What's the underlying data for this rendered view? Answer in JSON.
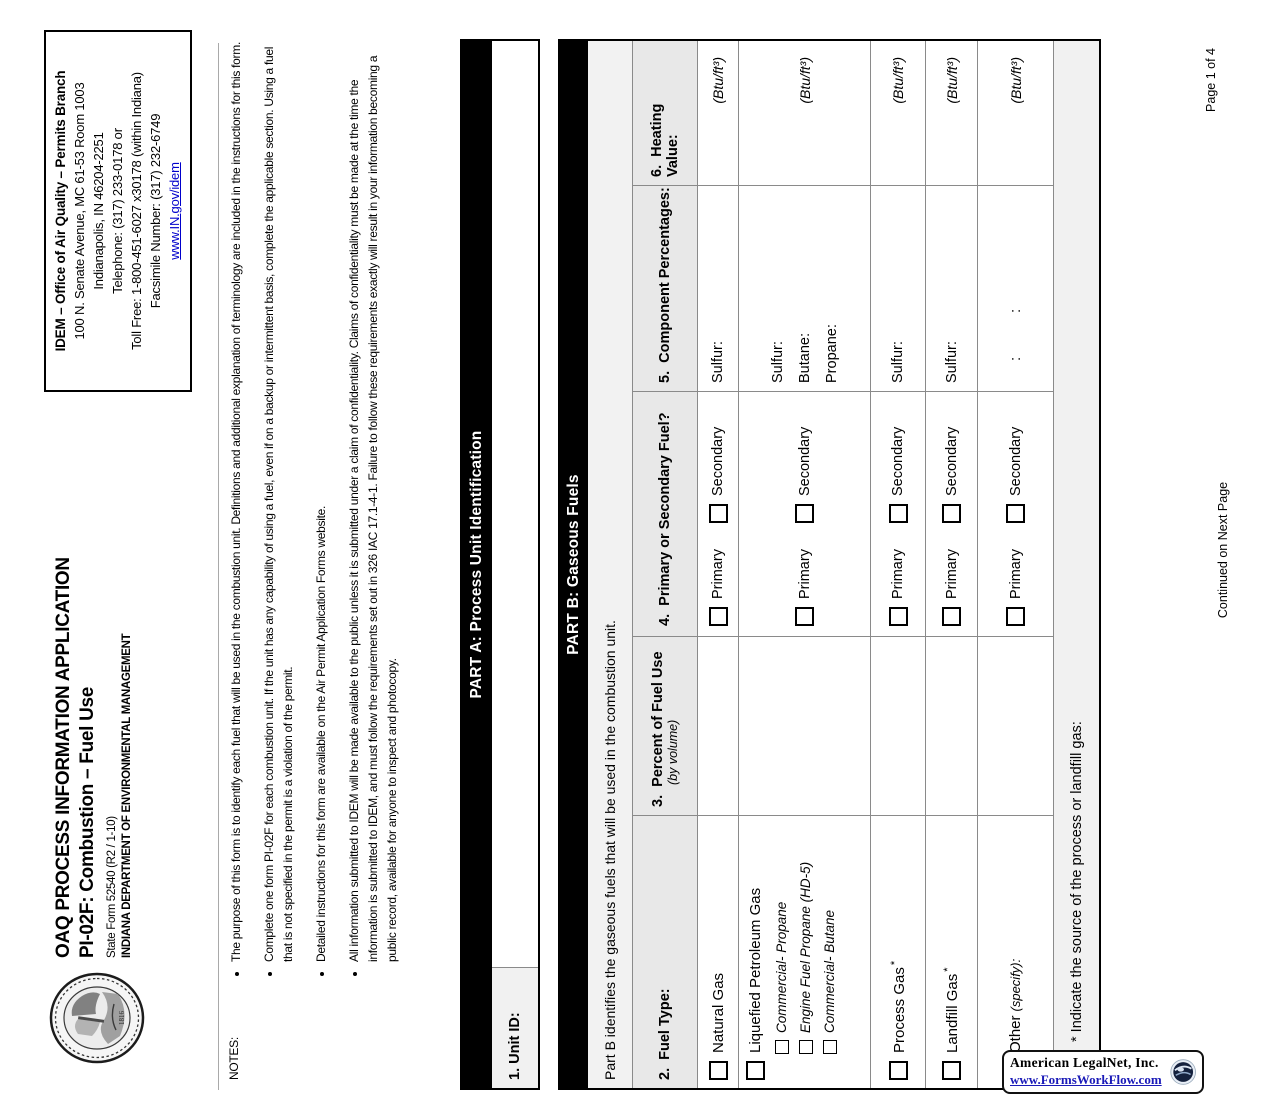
{
  "form": {
    "title_line1": "OAQ PROCESS INFORMATION APPLICATION",
    "title_line2": "PI-02F: Combustion – Fuel Use",
    "state_form": "State Form 52540 (R2 / 1-10)",
    "department": "INDIANA DEPARTMENT OF ENVIRONMENTAL MANAGEMENT",
    "seal_alt": "Seal of the State of Indiana 1816"
  },
  "idem_box": {
    "title": "IDEM – Office of Air Quality – Permits Branch",
    "lines": [
      "100 N. Senate Avenue, MC 61-53 Room 1003",
      "Indianapolis, IN 46204-2251",
      "Telephone: (317) 233-0178 or",
      "Toll Free: 1-800-451-6027 x30178 (within Indiana)",
      "Facsimile Number: (317) 232-6749"
    ],
    "link": "www.IN.gov/idem"
  },
  "notes": {
    "label": "NOTES:",
    "bullets": [
      "The purpose of this form is to identify each fuel that will be used in the combustion unit.  Definitions and additional explanation of terminology are included in the instructions for this form.",
      "Complete one form PI-02F for each combustion unit.  If the unit has any capability of using a fuel, even if on a backup or intermittent basis, complete the applicable section.  Using a fuel that is not specified in the permit is a violation of the permit.",
      "Detailed instructions for this form are available on the Air Permit Application Forms website.",
      "All information submitted to IDEM will be made available to the public unless it is submitted under a claim of confidentiality. Claims of confidentiality must be made at the time the information is submitted to IDEM, and must follow the requirements set out in 326 IAC 17.1-4-1. Failure to follow these requirements exactly will result in your information becoming a public record, available for anyone to inspect and photocopy."
    ]
  },
  "part_a": {
    "header": "PART A: Process Unit Identification",
    "unit_id_label": "1.  Unit ID:"
  },
  "part_b": {
    "header": "PART B: Gaseous Fuels",
    "description": "Part B identifies the gaseous fuels that will be used in the combustion unit.",
    "columns": {
      "fuel_type": "2.  Fuel Type:",
      "percent": "3.  Percent of Fuel Use",
      "percent_sub": "(by volume)",
      "primary_secondary": "4.  Primary or Secondary Fuel?",
      "components": "5.  Component Percentages:",
      "heating": "6.  Heating Value:"
    },
    "primary_label": "Primary",
    "secondary_label": "Secondary",
    "rows": [
      {
        "fuel": "Natural Gas",
        "components": [
          "Sulfur:"
        ],
        "heating": "(Btu/ft³)"
      },
      {
        "fuel": "Liquefied Petroleum Gas",
        "subs": [
          "Commercial- Propane",
          "Engine Fuel Propane (HD-5)",
          "Commercial- Butane"
        ],
        "components": [
          "Sulfur:",
          "Butane:",
          "Propane:"
        ],
        "heating": "(Btu/ft³)"
      },
      {
        "fuel": "Process Gas",
        "footnote_mark": "*",
        "components": [
          "Sulfur:"
        ],
        "heating": "(Btu/ft³)"
      },
      {
        "fuel": "Landfill Gas",
        "footnote_mark": "*",
        "components": [
          "Sulfur:"
        ],
        "heating": "(Btu/ft³)"
      },
      {
        "fuel": "Other",
        "specify": "(specify):",
        "components": [
          ":",
          ":"
        ],
        "components_inline": true,
        "heating": "(Btu/ft³)"
      }
    ],
    "footnote": "* Indicate the source of the process or landfill gas:"
  },
  "footer": {
    "continued": "Continued on Next Page",
    "page": "Page 1 of 4"
  },
  "badge": {
    "company": "American LegalNet, Inc.",
    "url": "www.FormsWorkFlow.com"
  },
  "colors": {
    "link": "#0000cc",
    "badge_link": "#1a1ab8",
    "bar": "#000000",
    "header_gray": "#e8e8e8",
    "light_gray": "#f1f1f1"
  }
}
